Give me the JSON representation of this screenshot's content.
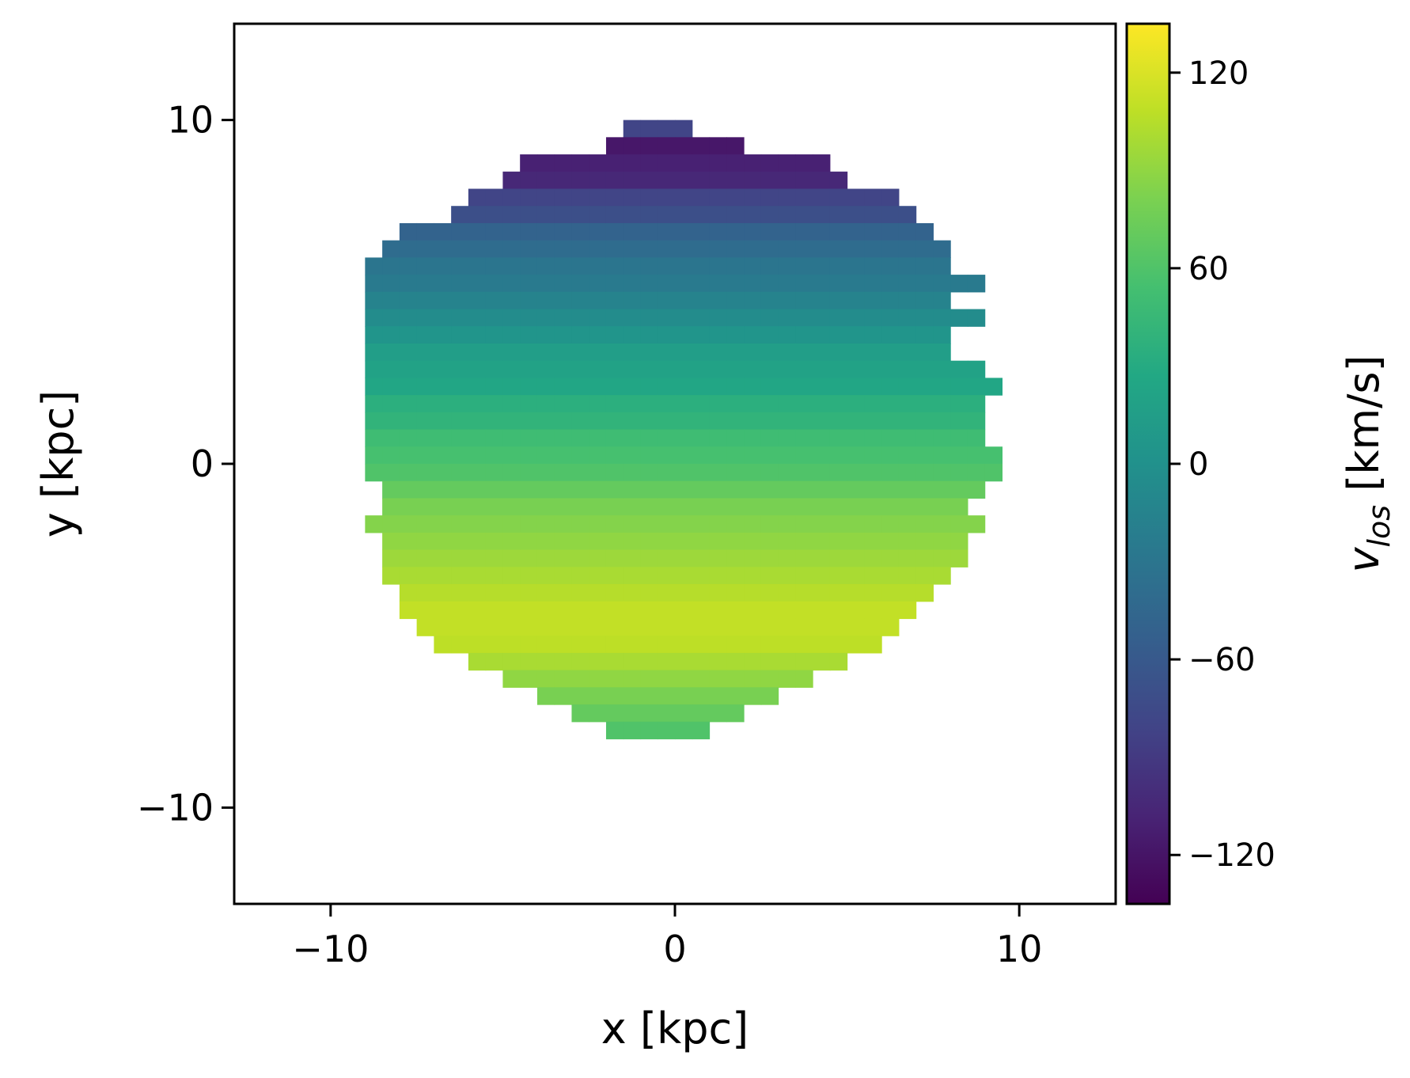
{
  "chart_data": {
    "type": "heatmap",
    "xlabel": "x [kpc]",
    "ylabel": "y [kpc]",
    "xlim": [
      -12.8,
      12.8
    ],
    "ylim": [
      -12.8,
      12.8
    ],
    "xticks": [
      -10,
      0,
      10
    ],
    "yticks": [
      -10,
      0,
      10
    ],
    "x_tick_labels": [
      "−10",
      "0",
      "10"
    ],
    "y_tick_labels": [
      "−10",
      "0",
      "10"
    ],
    "colormap": "viridis",
    "colorbar": {
      "label_main": "v",
      "label_sub": "los",
      "label_unit": " [km/s]",
      "vmin": -135,
      "vmax": 135,
      "ticks": [
        120,
        60,
        0,
        -60,
        -120
      ],
      "tick_labels": [
        "120",
        "60",
        "0",
        "−60",
        "−120"
      ]
    },
    "grid": {
      "cell_size_kpc": 0.5,
      "x_start": -9,
      "y_start": 10.0,
      "row_step": -0.5,
      "rows": [
        [
          15,
          19,
          "-80"
        ],
        [
          14,
          22,
          "-118"
        ],
        [
          9,
          27,
          "-110"
        ],
        [
          8,
          28,
          "-105"
        ],
        [
          6,
          31,
          "-80"
        ],
        [
          5,
          32,
          "-70"
        ],
        [
          2,
          33,
          "-50"
        ],
        [
          1,
          34,
          "-40"
        ],
        [
          0,
          34,
          "-30"
        ],
        [
          0,
          36,
          "-25"
        ],
        [
          0,
          34,
          "-15"
        ],
        [
          0,
          36,
          "-5"
        ],
        [
          0,
          34,
          "5"
        ],
        [
          0,
          34,
          "15"
        ],
        [
          0,
          36,
          "20"
        ],
        [
          0,
          37,
          "25"
        ],
        [
          0,
          36,
          "35"
        ],
        [
          0,
          36,
          "40"
        ],
        [
          0,
          36,
          "50"
        ],
        [
          0,
          37,
          "55"
        ],
        [
          0,
          37,
          "60"
        ],
        [
          1,
          36,
          "70"
        ],
        [
          1,
          35,
          "80"
        ],
        [
          0,
          36,
          "85"
        ],
        [
          1,
          35,
          "90"
        ],
        [
          1,
          35,
          "95"
        ],
        [
          1,
          34,
          "100"
        ],
        [
          2,
          33,
          "105"
        ],
        [
          2,
          32,
          "110"
        ],
        [
          3,
          31,
          "110"
        ],
        [
          4,
          30,
          "108"
        ],
        [
          6,
          28,
          "100"
        ],
        [
          8,
          26,
          "90"
        ],
        [
          10,
          24,
          "80"
        ],
        [
          12,
          22,
          "70"
        ],
        [
          14,
          20,
          "60"
        ]
      ]
    }
  }
}
